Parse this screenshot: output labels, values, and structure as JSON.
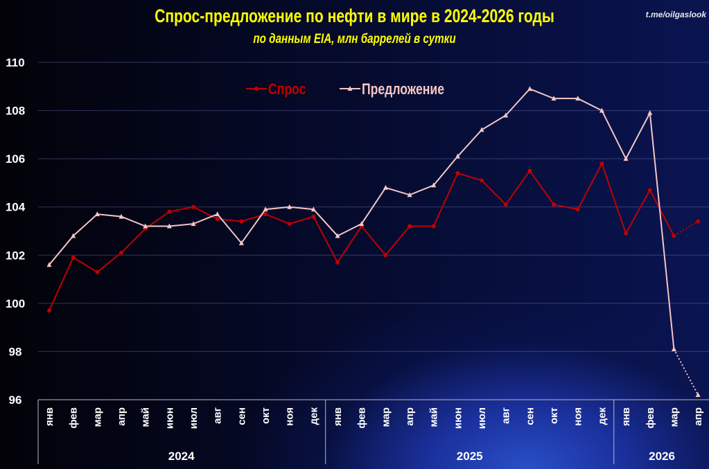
{
  "chart_data": {
    "type": "line",
    "title": "Спрос-предложение по нефти в мире в 2024-2026 годы",
    "subtitle": "по данным EIA, млн баррелей в сутки",
    "credit": "t.me/oilgaslook",
    "ylim": [
      96,
      110
    ],
    "yticks": [
      96,
      98,
      100,
      102,
      104,
      106,
      108,
      110
    ],
    "grid": true,
    "legend_position": "top-center",
    "categories": [
      "янв",
      "фев",
      "мар",
      "апр",
      "май",
      "июн",
      "июл",
      "авг",
      "сен",
      "окт",
      "ноя",
      "дек",
      "янв",
      "фев",
      "мар",
      "апр",
      "май",
      "июн",
      "июл",
      "авг",
      "сен",
      "окт",
      "ноя",
      "дек",
      "янв",
      "фев",
      "мар",
      "апр"
    ],
    "year_groups": [
      {
        "label": "2024",
        "count": 12
      },
      {
        "label": "2025",
        "count": 12
      },
      {
        "label": "2026",
        "count": 4
      }
    ],
    "series": [
      {
        "name": "Спрос",
        "color": "#c00000",
        "marker": "circle",
        "dotted_last_segment": true,
        "values": [
          99.7,
          101.9,
          101.3,
          102.1,
          103.1,
          103.8,
          104.0,
          103.5,
          103.4,
          103.7,
          103.3,
          103.6,
          101.7,
          103.2,
          102.0,
          103.2,
          103.2,
          105.4,
          105.1,
          104.1,
          105.5,
          104.1,
          103.9,
          105.8,
          102.9,
          104.7,
          102.8,
          103.4
        ]
      },
      {
        "name": "Предложение",
        "color": "#f4c6c6",
        "marker": "triangle",
        "dotted_last_segment": true,
        "values": [
          101.6,
          102.8,
          103.7,
          103.6,
          103.2,
          103.2,
          103.3,
          103.7,
          102.5,
          103.9,
          104.0,
          103.9,
          102.8,
          103.3,
          104.8,
          104.5,
          104.9,
          106.1,
          107.2,
          107.8,
          108.9,
          108.5,
          108.5,
          108.0,
          106.0,
          107.9,
          98.1,
          96.2
        ]
      }
    ]
  }
}
